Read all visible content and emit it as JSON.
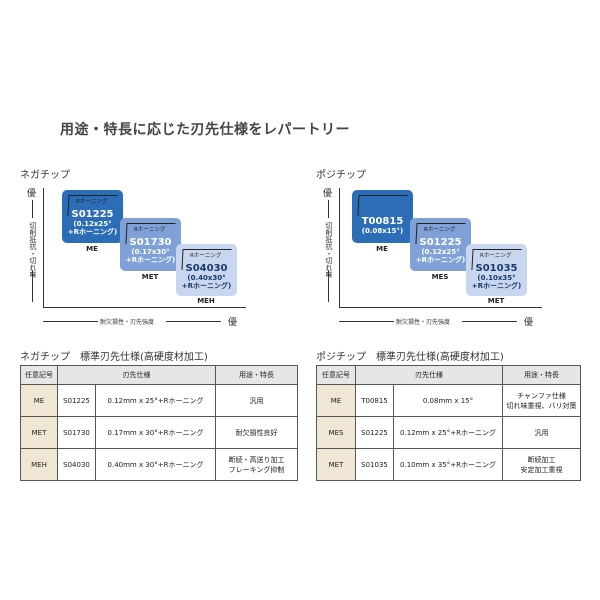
{
  "title": "用途・特長に応じた刃先仕様をレパートリー",
  "charts": [
    {
      "label": "ネガチップ",
      "y_axis": "切削抵抗・切れ味",
      "x_axis": "耐欠損性・刃先強度",
      "best": "優",
      "boxes": [
        {
          "tag": "Rホーニング",
          "code": "S01225",
          "spec1": "(0.12x25°",
          "spec2": "+Rホーニング)",
          "name": "ME",
          "color": "#2b6db6"
        },
        {
          "tag": "Rホーニング",
          "code": "S01730",
          "spec1": "(0.17x30°",
          "spec2": "+Rホーニング)",
          "name": "MET",
          "color": "#7fa1d7"
        },
        {
          "tag": "Rホーニング",
          "code": "S04030",
          "spec1": "(0.40x30°",
          "spec2": "+Rホーニング)",
          "name": "MEH",
          "color": "#c8d7ef"
        }
      ]
    },
    {
      "label": "ポジチップ",
      "y_axis": "切削抵抗・切れ味",
      "x_axis": "耐欠損性・刃先強度",
      "best": "優",
      "boxes": [
        {
          "tag": "",
          "code": "T00815",
          "spec1": "(0.08x15°)",
          "spec2": "",
          "name": "ME",
          "color": "#2b6db6"
        },
        {
          "tag": "Rホーニング",
          "code": "S01225",
          "spec1": "(0.12x25°",
          "spec2": "+Rホーニング)",
          "name": "MES",
          "color": "#7fa1d7"
        },
        {
          "tag": "Rホーニング",
          "code": "S01035",
          "spec1": "(0.10x35°",
          "spec2": "+Rホーニング)",
          "name": "MET",
          "color": "#c8d7ef"
        }
      ]
    }
  ],
  "tables": [
    {
      "title": "ネガチップ　標準刃先仕様(高硬度材加工)",
      "headers": [
        "任意記号",
        "刃先仕様",
        "用途・特長"
      ],
      "rows": [
        {
          "sym": "ME",
          "code": "S01225",
          "spec": "0.12mm x 25°+Rホーニング",
          "use1": "汎用",
          "use2": ""
        },
        {
          "sym": "MET",
          "code": "S01730",
          "spec": "0.17mm x 30°+Rホーニング",
          "use1": "耐欠損性良好",
          "use2": ""
        },
        {
          "sym": "MEH",
          "code": "S04030",
          "spec": "0.40mm x 30°+Rホーニング",
          "use1": "断続・高送り加工",
          "use2": "フレーキング抑制"
        }
      ]
    },
    {
      "title": "ポジチップ　標準刃先仕様(高硬度材加工)",
      "headers": [
        "任意記号",
        "刃先仕様",
        "用途・特長"
      ],
      "rows": [
        {
          "sym": "ME",
          "code": "T00815",
          "spec": "0.08mm x 15°",
          "use1": "チャンファ仕様",
          "use2": "切れ味重視、バリ対策"
        },
        {
          "sym": "MES",
          "code": "S01225",
          "spec": "0.12mm x 25°+Rホーニング",
          "use1": "汎用",
          "use2": ""
        },
        {
          "sym": "MET",
          "code": "S01035",
          "spec": "0.10mm x 35°+Rホーニング",
          "use1": "断続加工",
          "use2": "安定加工重視"
        }
      ]
    }
  ]
}
